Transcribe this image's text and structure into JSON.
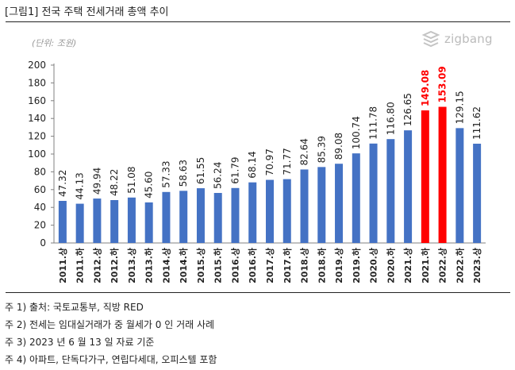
{
  "figure_title": "[그림1] 전국 주택 전세거래 총액 추이",
  "unit_label": "(단위: 조원)",
  "logo": {
    "text": "zigbang",
    "icon": "zigbang-logo-icon"
  },
  "colors": {
    "bar": "#4472C4",
    "highlight": "#FF0000",
    "axis": "#808080",
    "grid": "#D9D9D9"
  },
  "chart_data": {
    "type": "bar",
    "categories": [
      "2011.상",
      "2011.하",
      "2012.상",
      "2012.하",
      "2013.상",
      "2013.하",
      "2014.상",
      "2014.하",
      "2015.상",
      "2015.하",
      "2016.상",
      "2016.하",
      "2017.상",
      "2017.하",
      "2018.상",
      "2018.하",
      "2019.상",
      "2019.하",
      "2020.상",
      "2020.하",
      "2021.상",
      "2021.하",
      "2022.상",
      "2022.하",
      "2023.상"
    ],
    "values": [
      47.32,
      44.13,
      49.94,
      48.22,
      51.08,
      45.6,
      57.33,
      58.63,
      61.55,
      56.24,
      61.79,
      68.14,
      70.97,
      71.77,
      82.64,
      85.39,
      89.08,
      100.74,
      111.78,
      116.8,
      126.65,
      149.08,
      153.09,
      129.15,
      111.62
    ],
    "data_labels": [
      "47.32",
      "44.13",
      "49.94",
      "48.22",
      "51.08",
      "45.60",
      "57.33",
      "58.63",
      "61.55",
      "56.24",
      "61.79",
      "68.14",
      "70.97",
      "71.77",
      "82.64",
      "85.39",
      "89.08",
      "100.74",
      "111.78",
      "116.80",
      "126.65",
      "149.08",
      "153.09",
      "129.15",
      "111.62"
    ],
    "highlight_indices": [
      21,
      22
    ],
    "ylim": [
      0,
      200
    ],
    "yticks": [
      0,
      20,
      40,
      60,
      80,
      100,
      120,
      140,
      160,
      180,
      200
    ],
    "ytick_labels": [
      "0",
      "20",
      "40",
      "60",
      "80",
      "100",
      "120",
      "140",
      "160",
      "180",
      "200"
    ],
    "grid": false,
    "legend": "none"
  },
  "notes": [
    "주 1) 출처: 국토교통부, 직방 RED",
    "주 2) 전세는 임대실거래가 중 월세가 0 인 거래 사례",
    "주 3) 2023 년 6 월 13 일 자료 기준",
    "주 4) 아파트, 단독다가구, 연립다세대, 오피스텔 포함"
  ]
}
